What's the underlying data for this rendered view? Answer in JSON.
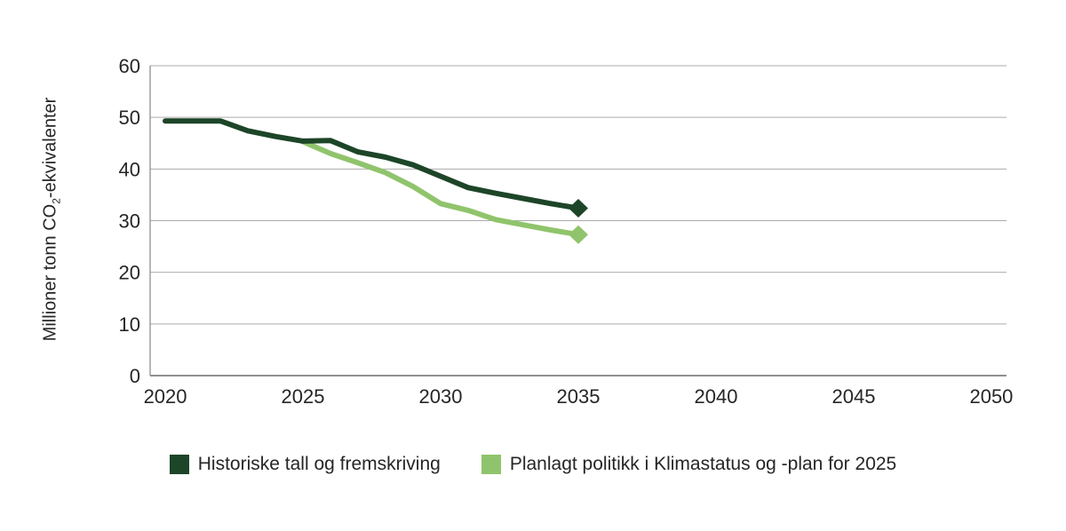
{
  "chart_data": {
    "type": "line",
    "title": "",
    "xlabel": "",
    "ylabel": {
      "pre": "Millioner tonn CO",
      "sub": "2",
      "post": "-ekvivalenter"
    },
    "x_ticks": [
      2020,
      2025,
      2030,
      2035,
      2040,
      2045,
      2050
    ],
    "y_ticks": [
      0,
      10,
      20,
      30,
      40,
      50,
      60
    ],
    "xlim": [
      2019.45,
      2050.55
    ],
    "ylim": [
      0,
      60
    ],
    "grid": "horizontal-only",
    "legend_position": "bottom-center",
    "colors": {
      "grid": "#ababab",
      "axis": "#8f8f8f",
      "text": "#262626",
      "background": "#ffffff"
    },
    "series": [
      {
        "name": "Historiske tall og fremskriving",
        "color": "#1d4528",
        "line_width": 6,
        "end_marker": "diamond",
        "x": [
          2020,
          2021,
          2022,
          2023,
          2024,
          2025,
          2026,
          2027,
          2028,
          2029,
          2030,
          2031,
          2032,
          2033,
          2034,
          2035
        ],
        "values": [
          49.3,
          49.3,
          49.3,
          47.4,
          46.3,
          45.4,
          45.5,
          43.3,
          42.3,
          40.8,
          38.6,
          36.4,
          35.3,
          34.3,
          33.3,
          32.4
        ]
      },
      {
        "name": "Planlagt politikk i Klimastatus og -plan for 2025",
        "color": "#90c46c",
        "line_width": 6,
        "end_marker": "diamond",
        "x": [
          2025,
          2026,
          2027,
          2028,
          2029,
          2030,
          2031,
          2032,
          2033,
          2034,
          2035
        ],
        "values": [
          45.3,
          43.0,
          41.2,
          39.3,
          36.6,
          33.3,
          32.0,
          30.2,
          29.2,
          28.2,
          27.3
        ]
      }
    ]
  }
}
